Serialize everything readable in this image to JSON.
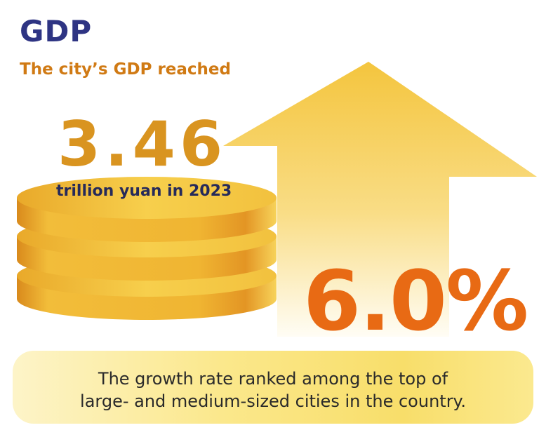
{
  "title": "GDP",
  "subtitle": "The city’s GDP reached",
  "gdp": {
    "value": "3.46",
    "unit": "trillion yuan in 2023"
  },
  "growth": {
    "value": "6.0%"
  },
  "banner": {
    "line1": "The growth rate ranked among the top of",
    "line2": "large- and medium-sized cities in the country."
  },
  "colors": {
    "title": "#2e3483",
    "subtitle": "#d07a14",
    "gdp_value": "#d99420",
    "growth_value": "#e86a14",
    "coin": "#f2c43c",
    "arrow": "#f6cc4c"
  },
  "icons": {
    "arrow": "up-arrow-icon",
    "coins": "coin-stack-icon"
  }
}
